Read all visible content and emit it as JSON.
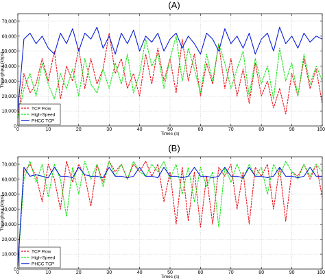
{
  "chart_data": [
    {
      "type": "line",
      "panel": "(A)",
      "xlabel": "Times (s)",
      "ylabel": "Throughput (kbps)",
      "xlim": [
        0,
        100
      ],
      "ylim": [
        0,
        75000
      ],
      "xticks": [
        0,
        10,
        20,
        30,
        40,
        50,
        60,
        70,
        80,
        90,
        100
      ],
      "xtick_labels": [
        "0",
        "10",
        "20",
        "30",
        "40",
        "50",
        "60",
        "70",
        "80",
        "90",
        "100"
      ],
      "yticks": [
        0,
        10000,
        20000,
        30000,
        40000,
        50000,
        60000,
        70000
      ],
      "ytick_labels": [
        "0",
        "10,000",
        "20,000",
        "30,000",
        "40,000",
        "50,000",
        "60,000",
        "70,000"
      ],
      "grid": true,
      "legend_position": "bottom-left",
      "x": [
        0,
        2,
        4,
        6,
        8,
        10,
        12,
        14,
        16,
        18,
        20,
        22,
        24,
        26,
        28,
        30,
        32,
        34,
        36,
        38,
        40,
        42,
        44,
        46,
        48,
        50,
        52,
        54,
        56,
        58,
        60,
        62,
        64,
        66,
        68,
        70,
        72,
        74,
        76,
        78,
        80,
        82,
        84,
        86,
        88,
        90,
        92,
        94,
        96,
        98,
        100
      ],
      "series": [
        {
          "name": "TCP Flow",
          "color": "#e8161e",
          "style": "dashed",
          "values": [
            5000,
            35000,
            22000,
            28000,
            45000,
            30000,
            50000,
            18000,
            40000,
            30000,
            52000,
            25000,
            45000,
            28000,
            38000,
            62000,
            35000,
            45000,
            25000,
            35000,
            20000,
            48000,
            28000,
            52000,
            30000,
            45000,
            22000,
            58000,
            30000,
            48000,
            20000,
            42000,
            28000,
            55000,
            25000,
            45000,
            20000,
            38000,
            15000,
            42000,
            20000,
            30000,
            12000,
            25000,
            8000,
            35000,
            20000,
            45000,
            25000,
            38000,
            15000
          ]
        },
        {
          "name": "High-Speed",
          "color": "#19e619",
          "style": "dashed",
          "values": [
            5000,
            25000,
            35000,
            20000,
            42000,
            28000,
            18000,
            35000,
            25000,
            38000,
            20000,
            45000,
            28000,
            22000,
            38000,
            25000,
            42000,
            28000,
            48000,
            22000,
            35000,
            58000,
            40000,
            48000,
            25000,
            45000,
            60000,
            30000,
            52000,
            38000,
            22000,
            48000,
            30000,
            55000,
            42000,
            25000,
            38000,
            50000,
            20000,
            45000,
            28000,
            40000,
            18000,
            52000,
            30000,
            42000,
            20000,
            48000,
            28000,
            40000,
            30000
          ]
        },
        {
          "name": "PHCC TCP",
          "color": "#0a1fd6",
          "style": "solid",
          "values": [
            10000,
            58000,
            62000,
            55000,
            60000,
            52000,
            48000,
            62000,
            55000,
            65000,
            50000,
            62000,
            58000,
            66000,
            52000,
            60000,
            48000,
            62000,
            55000,
            64000,
            50000,
            60000,
            56000,
            62000,
            50000,
            58000,
            62000,
            52000,
            60000,
            55000,
            48000,
            62000,
            58000,
            50000,
            65000,
            55000,
            60000,
            52000,
            62000,
            48000,
            58000,
            62000,
            50000,
            66000,
            55000,
            60000,
            52000,
            62000,
            56000,
            60000,
            58000
          ]
        }
      ]
    },
    {
      "type": "line",
      "panel": "(B)",
      "xlabel": "Times (s)",
      "ylabel": "Throughput (kbps)",
      "xlim": [
        0,
        100
      ],
      "ylim": [
        0,
        75000
      ],
      "xticks": [
        0,
        10,
        20,
        30,
        40,
        50,
        60,
        70,
        80,
        90,
        100
      ],
      "xtick_labels": [
        "0",
        "10",
        "20",
        "30",
        "40",
        "50",
        "60",
        "70",
        "80",
        "90",
        "100"
      ],
      "yticks": [
        0,
        10000,
        20000,
        30000,
        40000,
        50000,
        60000,
        70000
      ],
      "ytick_labels": [
        "0",
        "10,000",
        "20,000",
        "30,000",
        "40,000",
        "50,000",
        "60,000",
        "70,000"
      ],
      "grid": true,
      "legend_position": "bottom-left",
      "x": [
        0,
        2,
        4,
        6,
        8,
        10,
        12,
        14,
        16,
        18,
        20,
        22,
        24,
        26,
        28,
        30,
        32,
        34,
        36,
        38,
        40,
        42,
        44,
        46,
        48,
        50,
        52,
        54,
        56,
        58,
        60,
        62,
        64,
        66,
        68,
        70,
        72,
        74,
        76,
        78,
        80,
        82,
        84,
        86,
        88,
        90,
        92,
        94,
        96,
        98,
        100
      ],
      "series": [
        {
          "name": "TCP Flow",
          "color": "#e8161e",
          "style": "dashed",
          "values": [
            2000,
            65000,
            70000,
            62000,
            45000,
            70000,
            60000,
            40000,
            72000,
            58000,
            70000,
            62000,
            42000,
            70000,
            58000,
            72000,
            65000,
            70000,
            60000,
            70000,
            65000,
            72000,
            62000,
            70000,
            45000,
            65000,
            30000,
            68000,
            32000,
            65000,
            28000,
            62000,
            30000,
            68000,
            62000,
            70000,
            40000,
            65000,
            30000,
            68000,
            62000,
            70000,
            40000,
            68000,
            32000,
            65000,
            62000,
            70000,
            60000,
            70000,
            48000
          ]
        },
        {
          "name": "High-Speed",
          "color": "#19e619",
          "style": "dashed",
          "values": [
            2000,
            60000,
            72000,
            58000,
            70000,
            48000,
            70000,
            60000,
            35000,
            68000,
            50000,
            72000,
            60000,
            70000,
            55000,
            72000,
            62000,
            70000,
            60000,
            72000,
            65000,
            62000,
            70000,
            65000,
            72000,
            60000,
            70000,
            50000,
            68000,
            45000,
            68000,
            55000,
            65000,
            28000,
            68000,
            58000,
            70000,
            60000,
            70000,
            62000,
            68000,
            50000,
            70000,
            62000,
            72000,
            65000,
            60000,
            70000,
            62000,
            70000,
            65000
          ]
        },
        {
          "name": "PHCC TCP",
          "color": "#0a1fd6",
          "style": "solid",
          "values": [
            2000,
            68000,
            62000,
            63000,
            62000,
            61000,
            68000,
            62000,
            62000,
            61000,
            68000,
            63000,
            62000,
            62000,
            61000,
            68000,
            62000,
            62000,
            61000,
            62000,
            68000,
            62000,
            62000,
            61000,
            68000,
            62000,
            62000,
            61000,
            62000,
            68000,
            62000,
            62000,
            61000,
            62000,
            68000,
            62000,
            62000,
            61000,
            68000,
            62000,
            62000,
            61000,
            62000,
            68000,
            62000,
            62000,
            61000,
            62000,
            68000,
            62000,
            62000
          ]
        }
      ]
    }
  ]
}
